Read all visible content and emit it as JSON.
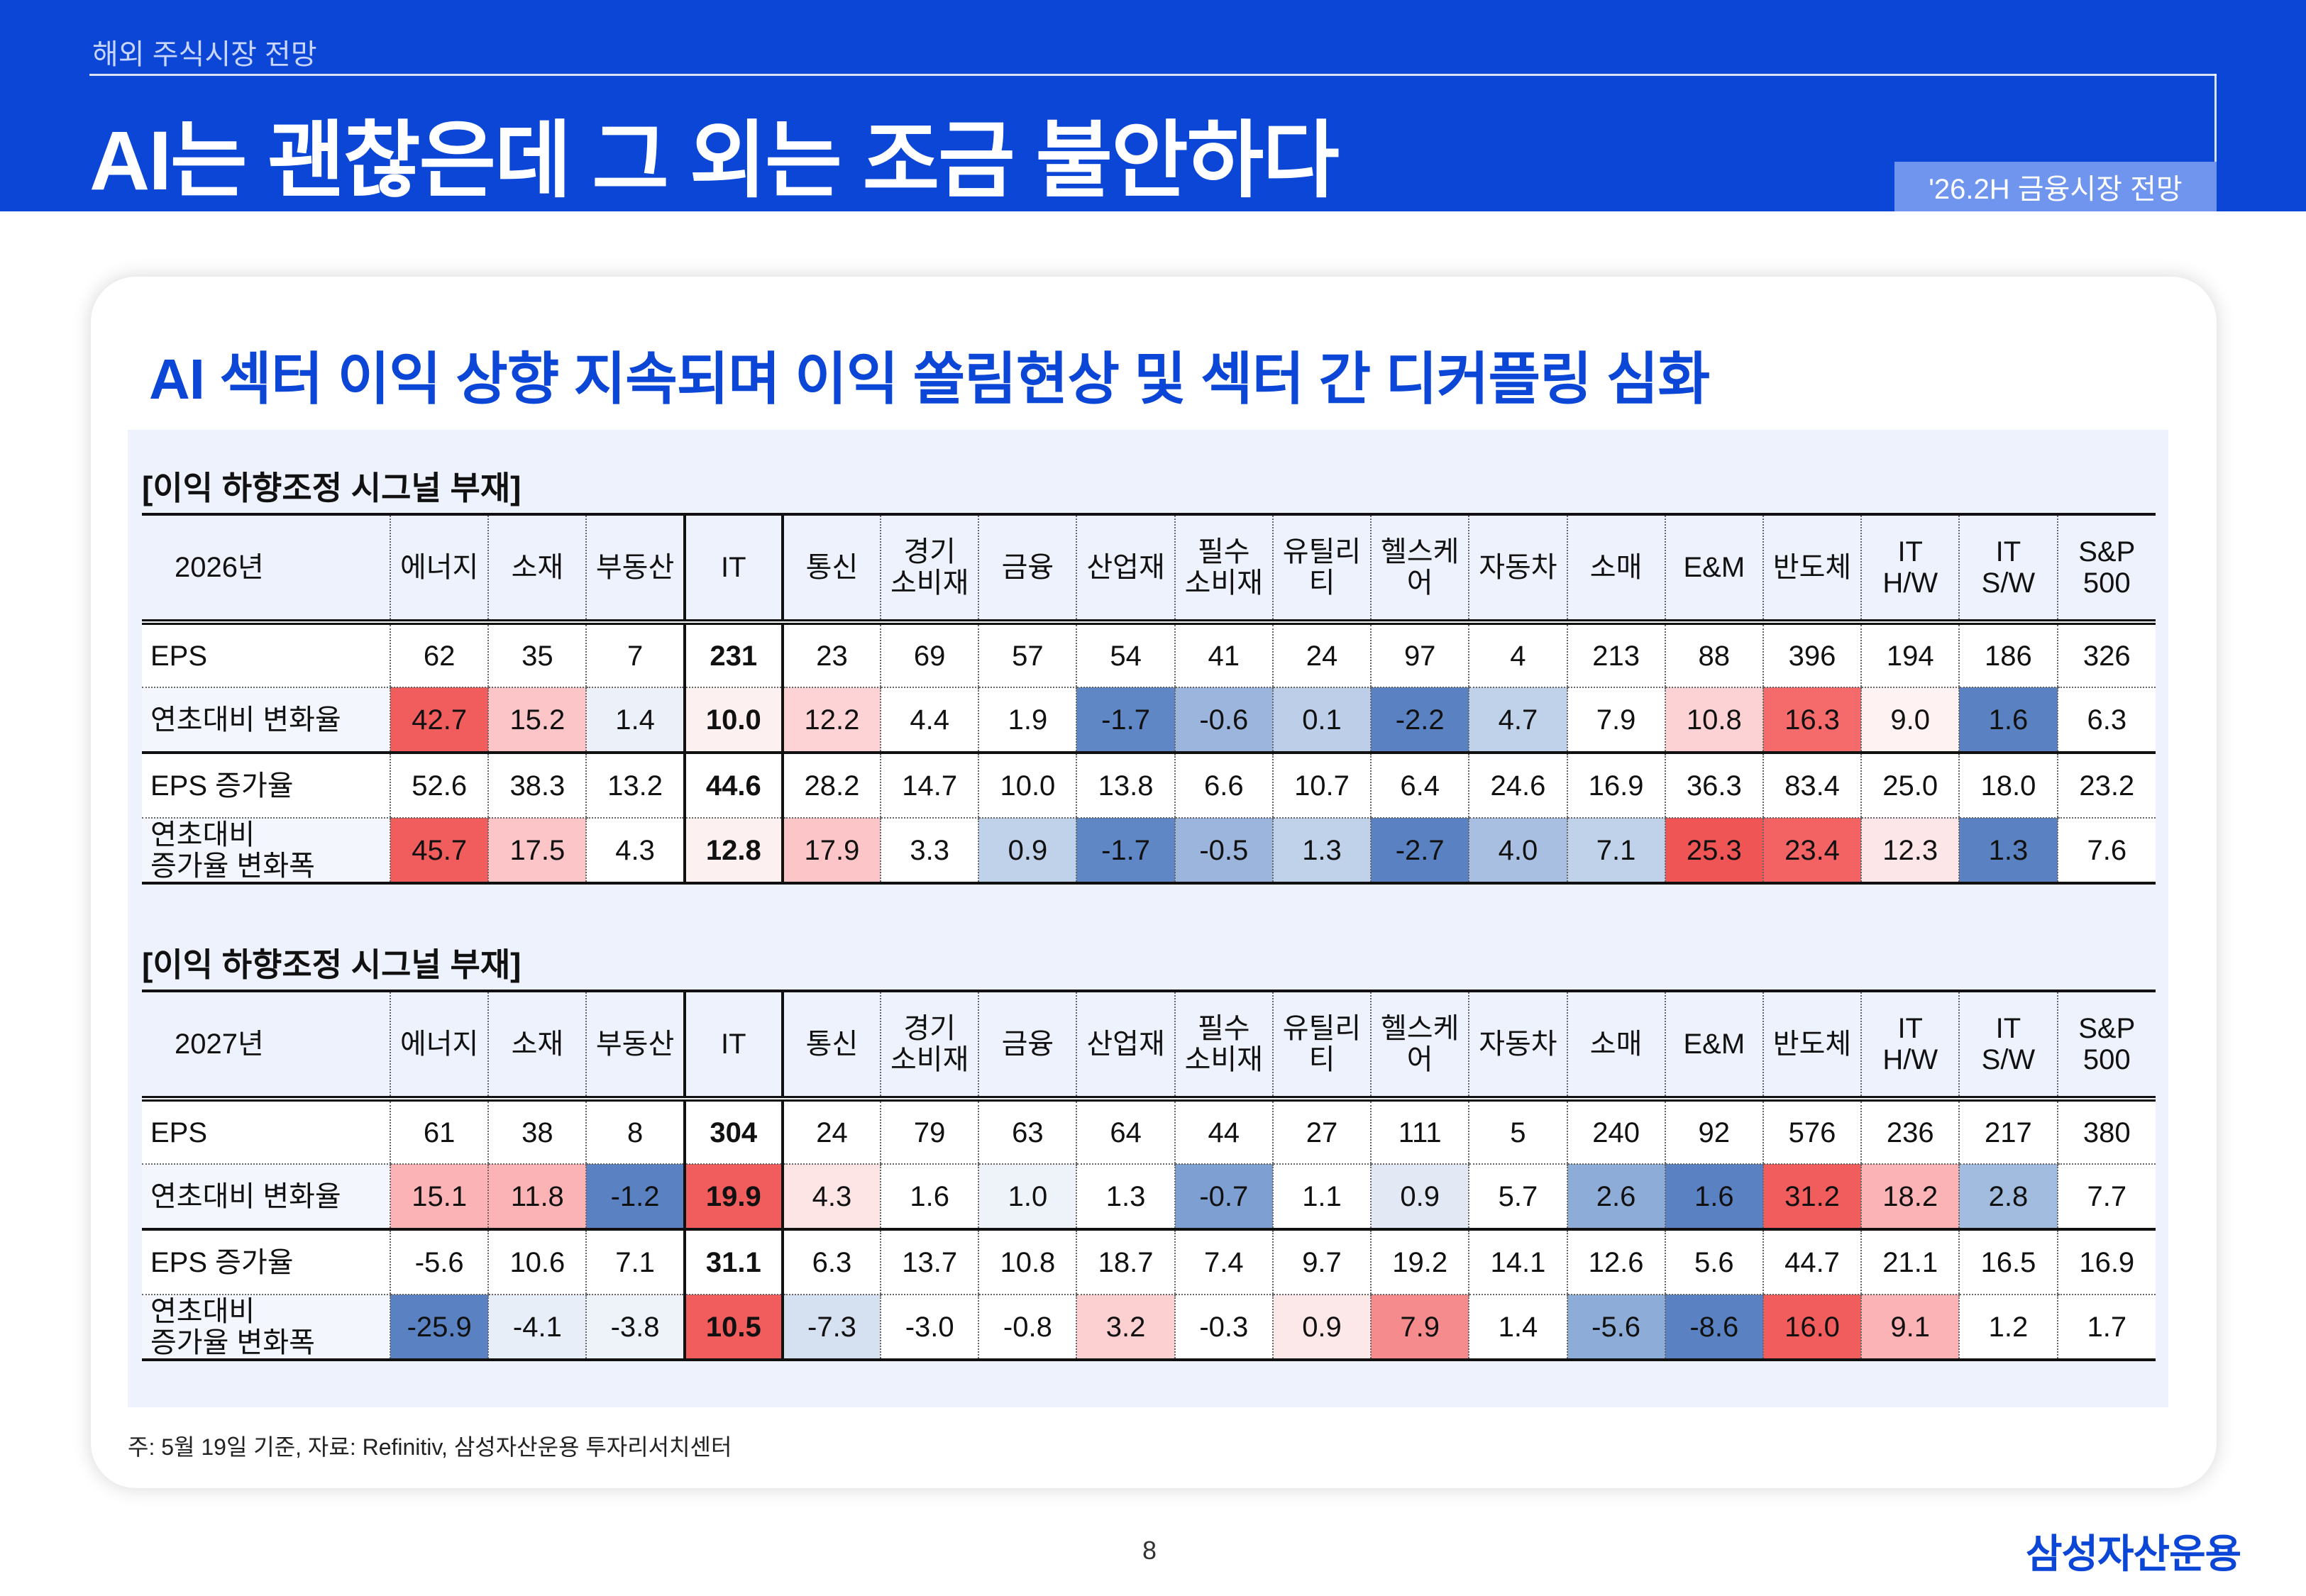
{
  "header": {
    "section": "해외 주식시장 전망",
    "title": "AI는 괜찮은데 그 외는 조금 불안하다",
    "badge": "'26.2H 금융시장 전망"
  },
  "subtitle": "AI 섹터 이익 상향 지속되며 이익 쏠림현상 및 섹터 간 디커플링 심화",
  "columns": [
    "에너지",
    "소재",
    "부동산",
    "IT",
    "통신",
    "경기\n소비재",
    "금융",
    "산업재",
    "필수\n소비재",
    "유틸리티",
    "헬스케어",
    "자동차",
    "소매",
    "E&M",
    "반도체",
    "IT\nH/W",
    "IT\nS/W",
    "S&P\n500"
  ],
  "tables": [
    {
      "label": "[이익 하향조정 시그널 부재]",
      "year": "2026년",
      "rows": [
        {
          "name": "EPS",
          "values": [
            "62",
            "35",
            "7",
            "231",
            "23",
            "69",
            "57",
            "54",
            "41",
            "24",
            "97",
            "4",
            "213",
            "88",
            "396",
            "194",
            "186",
            "326"
          ]
        },
        {
          "name": "연초대비 변화율",
          "values": [
            "42.7",
            "15.2",
            "1.4",
            "10.0",
            "12.2",
            "4.4",
            "1.9",
            "-1.7",
            "-0.6",
            "0.1",
            "-2.2",
            "4.7",
            "7.9",
            "10.8",
            "16.3",
            "9.0",
            "1.6",
            "6.3"
          ]
        },
        {
          "name": "EPS 증가율",
          "values": [
            "52.6",
            "38.3",
            "13.2",
            "44.6",
            "28.2",
            "14.7",
            "10.0",
            "13.8",
            "6.6",
            "10.7",
            "6.4",
            "24.6",
            "16.9",
            "36.3",
            "83.4",
            "25.0",
            "18.0",
            "23.2"
          ]
        },
        {
          "name": "연초대비\n증가율 변화폭",
          "values": [
            "45.7",
            "17.5",
            "4.3",
            "12.8",
            "17.9",
            "3.3",
            "0.9",
            "-1.7",
            "-0.5",
            "1.3",
            "-2.7",
            "4.0",
            "7.1",
            "25.3",
            "23.4",
            "12.3",
            "1.3",
            "7.6"
          ]
        }
      ],
      "colors": {
        "r1": [
          "#f15c5c",
          "#fcc6c8",
          "#ecf0f8",
          "#fdf0f0",
          "#fdd3d5",
          "#ffffff",
          "#ffffff",
          "#5f87c6",
          "#9bb5dc",
          "#bccee8",
          "#5a82c2",
          "#c0d1ea",
          "#ffffff",
          "#fcd2d4",
          "#f56a6b",
          "#fef2f2",
          "#5a82c2",
          "#ffffff"
        ],
        "r3": [
          "#f15c5c",
          "#fcc6c8",
          "#ffffff",
          "#fdf0f0",
          "#fcc6c8",
          "#ffffff",
          "#c0d1ea",
          "#5f87c6",
          "#9bb5dc",
          "#c0d1ea",
          "#5a82c2",
          "#a8bfe2",
          "#c0d1ea",
          "#ef5555",
          "#f36364",
          "#fde6e7",
          "#5a82c2",
          "#ffffff"
        ]
      }
    },
    {
      "label": "[이익 하향조정 시그널 부재]",
      "year": "2027년",
      "rows": [
        {
          "name": "EPS",
          "values": [
            "61",
            "38",
            "8",
            "304",
            "24",
            "79",
            "63",
            "64",
            "44",
            "27",
            "111",
            "5",
            "240",
            "92",
            "576",
            "236",
            "217",
            "380"
          ]
        },
        {
          "name": "연초대비 변화율",
          "values": [
            "15.1",
            "11.8",
            "-1.2",
            "19.9",
            "4.3",
            "1.6",
            "1.0",
            "1.3",
            "-0.7",
            "1.1",
            "0.9",
            "5.7",
            "2.6",
            "1.6",
            "31.2",
            "18.2",
            "2.8",
            "7.7"
          ]
        },
        {
          "name": "EPS 증가율",
          "values": [
            "-5.6",
            "10.6",
            "7.1",
            "31.1",
            "6.3",
            "13.7",
            "10.8",
            "18.7",
            "7.4",
            "9.7",
            "19.2",
            "14.1",
            "12.6",
            "5.6",
            "44.7",
            "21.1",
            "16.5",
            "16.9"
          ]
        },
        {
          "name": "연초대비\n증가율 변화폭",
          "values": [
            "-25.9",
            "-4.1",
            "-3.8",
            "10.5",
            "-7.3",
            "-3.0",
            "-0.8",
            "3.2",
            "-0.3",
            "0.9",
            "7.9",
            "1.4",
            "-5.6",
            "-8.6",
            "16.0",
            "9.1",
            "1.2",
            "1.7"
          ]
        }
      ],
      "colors": {
        "r1": [
          "#fbb3b6",
          "#fbb3b6",
          "#5a82c2",
          "#f15c5c",
          "#fde4e5",
          "#ffffff",
          "#eef2f9",
          "#ffffff",
          "#7d9fd2",
          "#ffffff",
          "#e2e9f5",
          "#ffffff",
          "#8eacd8",
          "#5a82c2",
          "#f15c5c",
          "#fbb3b6",
          "#a2bce0",
          "#ffffff"
        ],
        "r3": [
          "#5a82c2",
          "#e8eef7",
          "#eef2f9",
          "#f15c5c",
          "#d5e0f1",
          "#ffffff",
          "#ffffff",
          "#fccfd1",
          "#ffffff",
          "#fde8e9",
          "#f68b8d",
          "#ffffff",
          "#8eacd8",
          "#5a82c2",
          "#f15c5c",
          "#fbb3b6",
          "#ffffff",
          "#ffffff"
        ]
      }
    }
  ],
  "note": "주: 5월 19일 기준, 자료: Refinitiv, 삼성자산운용 투자리서치센터",
  "page_number": "8",
  "logo": "삼성자산운용",
  "colors": {
    "brand_blue": "#0b46d6",
    "positive_strong": "#f15c5c",
    "negative_strong": "#5a82c2"
  }
}
